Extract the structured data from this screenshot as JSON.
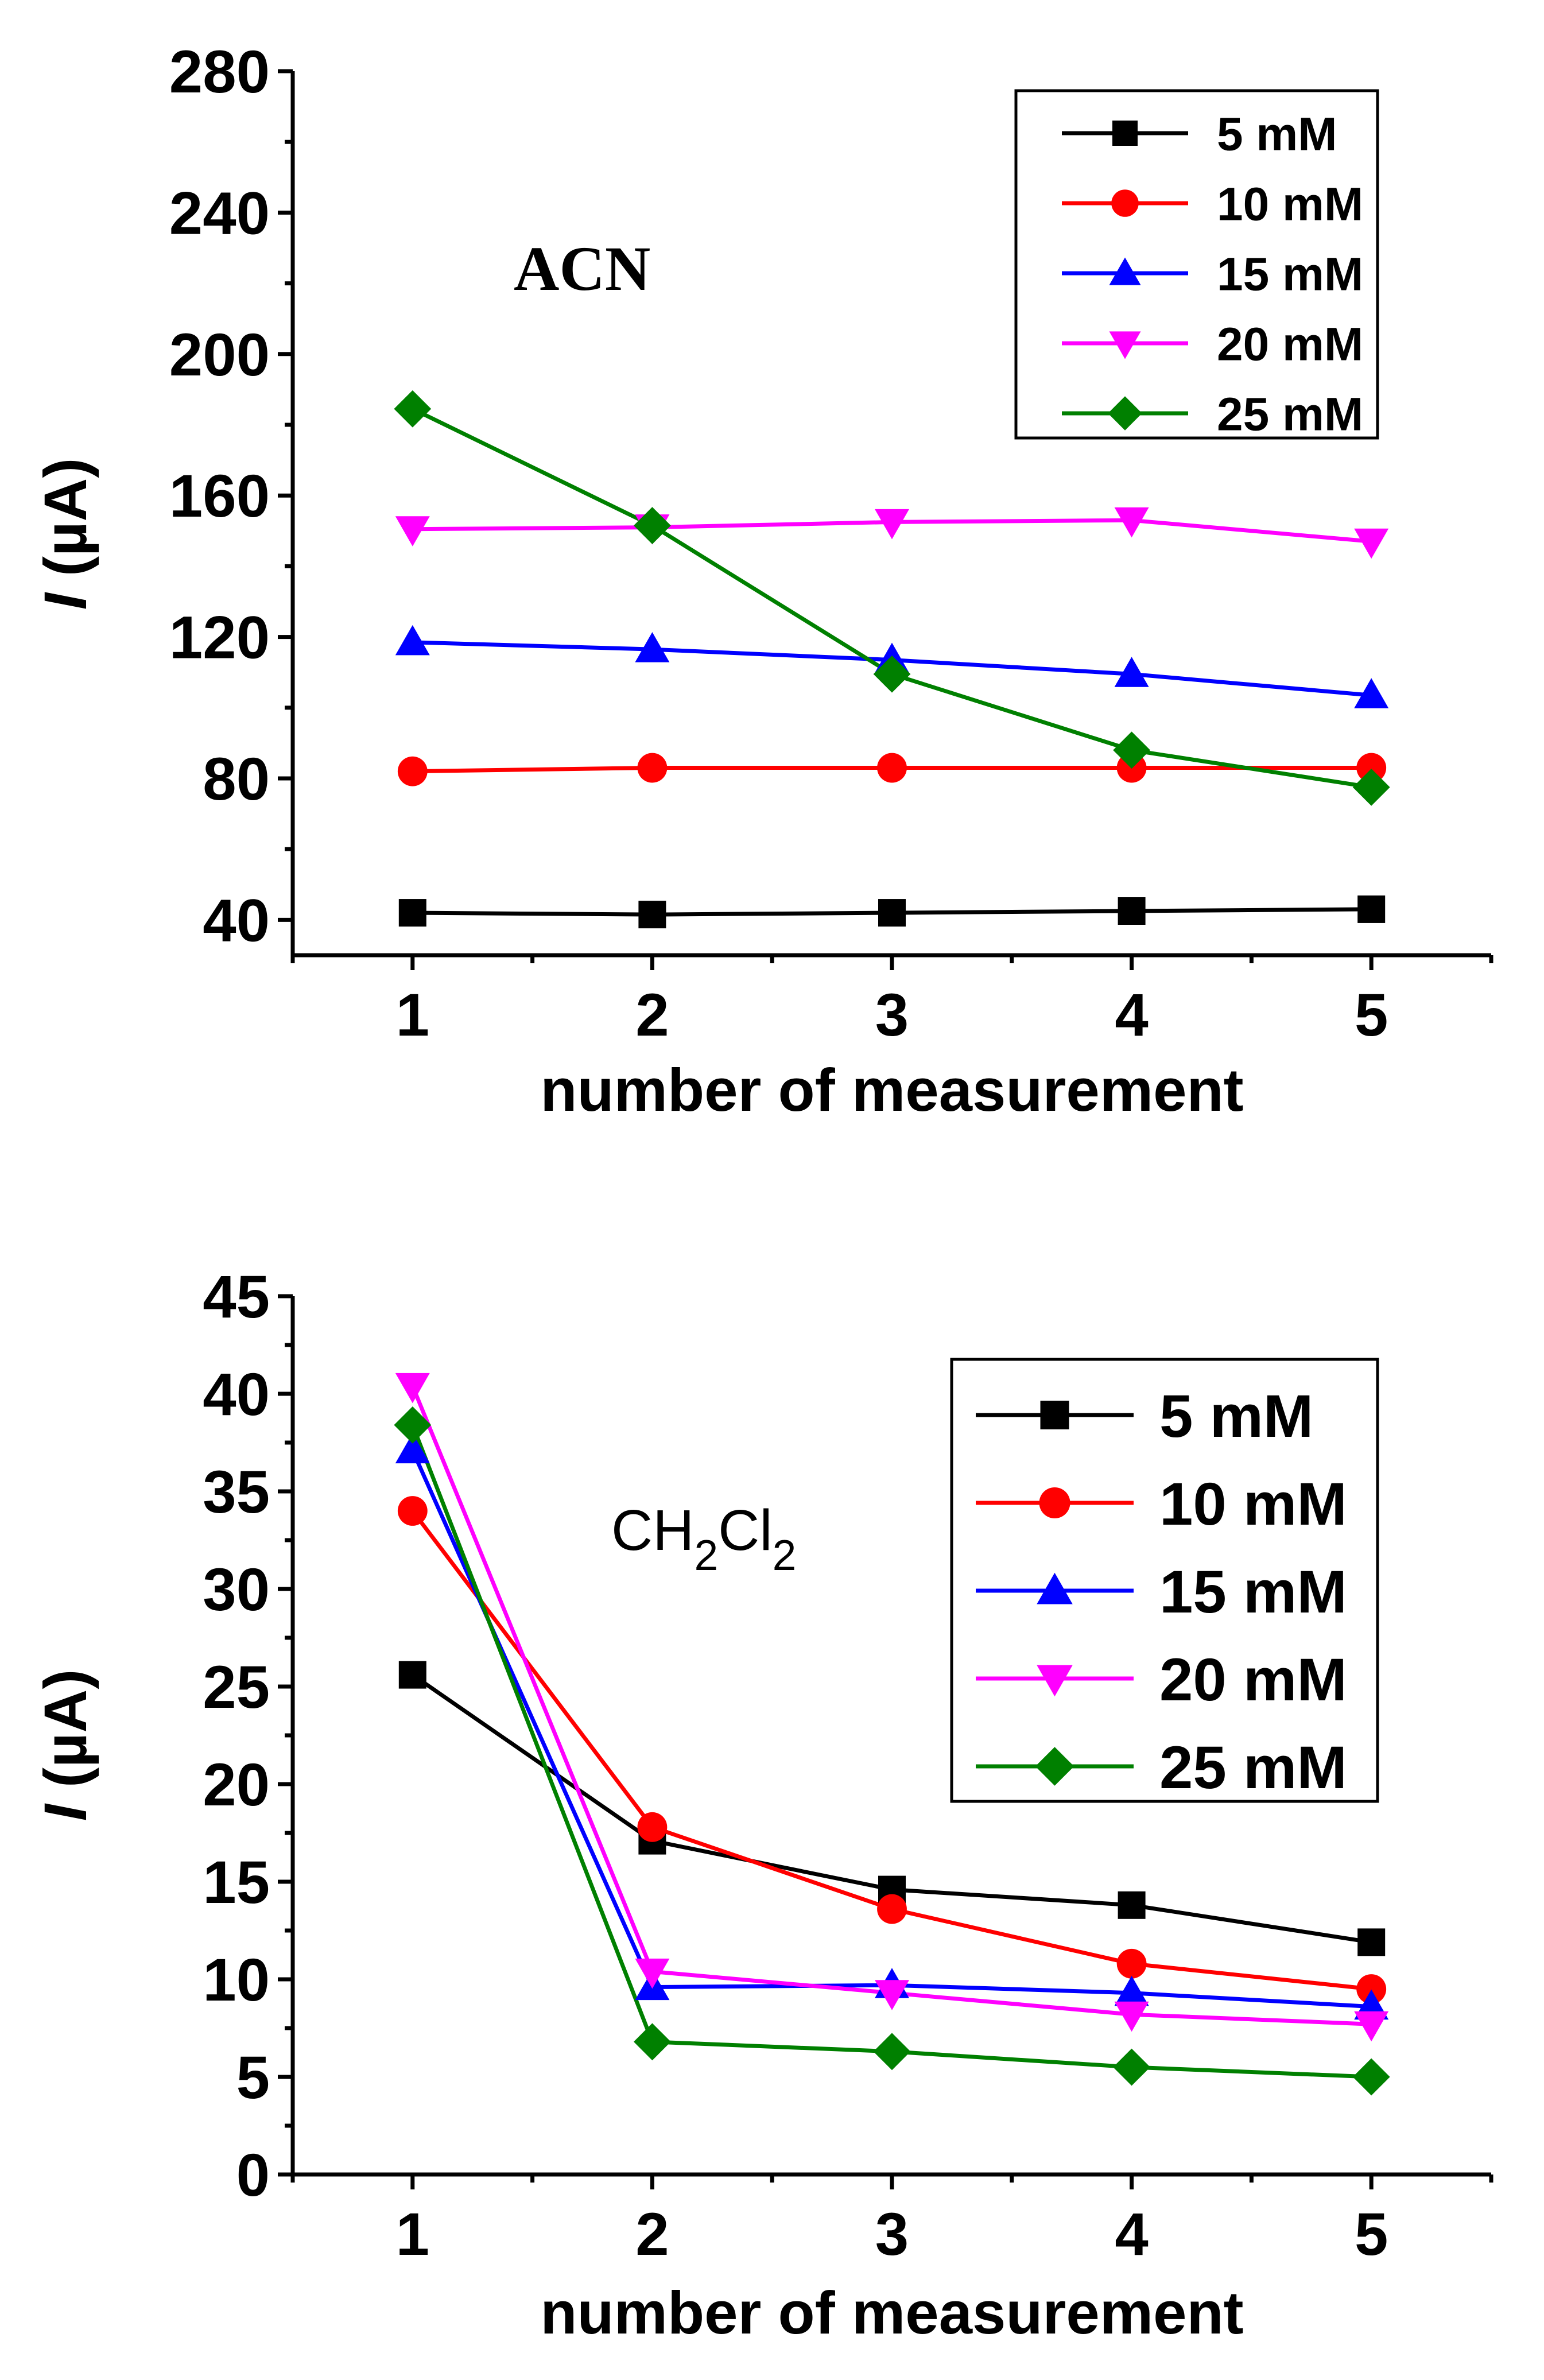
{
  "chart_data": [
    {
      "type": "line",
      "annotation": "ACN",
      "xlabel": "number of measurement",
      "ylabel_italic": "I",
      "ylabel_rest": " (µA)",
      "x": [
        1,
        2,
        3,
        4,
        5
      ],
      "xlim": [
        0.5,
        5.5
      ],
      "ylim": [
        30,
        280
      ],
      "yticks": [
        40,
        80,
        120,
        160,
        200,
        240,
        280
      ],
      "xticks": [
        1,
        2,
        3,
        4,
        5
      ],
      "legend_position": "top-right",
      "series": [
        {
          "name": "5 mM",
          "color": "#000000",
          "marker": "square",
          "values": [
            42,
            41.5,
            42,
            42.5,
            43
          ]
        },
        {
          "name": "10 mM",
          "color": "#ff0000",
          "marker": "circle",
          "values": [
            82,
            83,
            83,
            83,
            83
          ]
        },
        {
          "name": "15 mM",
          "color": "#0000ff",
          "marker": "triangle-up",
          "values": [
            118.5,
            116.5,
            113.5,
            109.5,
            103.5
          ]
        },
        {
          "name": "20 mM",
          "color": "#ff00ff",
          "marker": "triangle-down",
          "values": [
            150.5,
            151,
            152.5,
            153,
            147
          ]
        },
        {
          "name": "25 mM",
          "color": "#008000",
          "marker": "diamond",
          "values": [
            184.5,
            151.5,
            109.5,
            88,
            77.5
          ]
        }
      ]
    },
    {
      "type": "line",
      "annotation_main": "CH",
      "annotation_sub1": "2",
      "annotation_mid": "Cl",
      "annotation_sub2": "2",
      "xlabel": "number of measurement",
      "ylabel_italic": "I",
      "ylabel_rest": " (µA)",
      "x": [
        1,
        2,
        3,
        4,
        5
      ],
      "xlim": [
        0.5,
        5.5
      ],
      "ylim": [
        0,
        45
      ],
      "yticks": [
        0,
        5,
        10,
        15,
        20,
        25,
        30,
        35,
        40,
        45
      ],
      "xticks": [
        1,
        2,
        3,
        4,
        5
      ],
      "legend_position": "top-right",
      "series": [
        {
          "name": "5 mM",
          "color": "#000000",
          "marker": "square",
          "values": [
            25.6,
            17.1,
            14.6,
            13.8,
            11.9
          ]
        },
        {
          "name": "10 mM",
          "color": "#ff0000",
          "marker": "circle",
          "values": [
            34,
            17.8,
            13.6,
            10.8,
            9.5
          ]
        },
        {
          "name": "15 mM",
          "color": "#0000ff",
          "marker": "triangle-up",
          "values": [
            37.1,
            9.6,
            9.7,
            9.3,
            8.6
          ]
        },
        {
          "name": "20 mM",
          "color": "#ff00ff",
          "marker": "triangle-down",
          "values": [
            40.4,
            10.4,
            9.3,
            8.2,
            7.7
          ]
        },
        {
          "name": "25 mM",
          "color": "#008000",
          "marker": "diamond",
          "values": [
            38.4,
            6.8,
            6.3,
            5.5,
            5.0
          ]
        }
      ]
    }
  ]
}
